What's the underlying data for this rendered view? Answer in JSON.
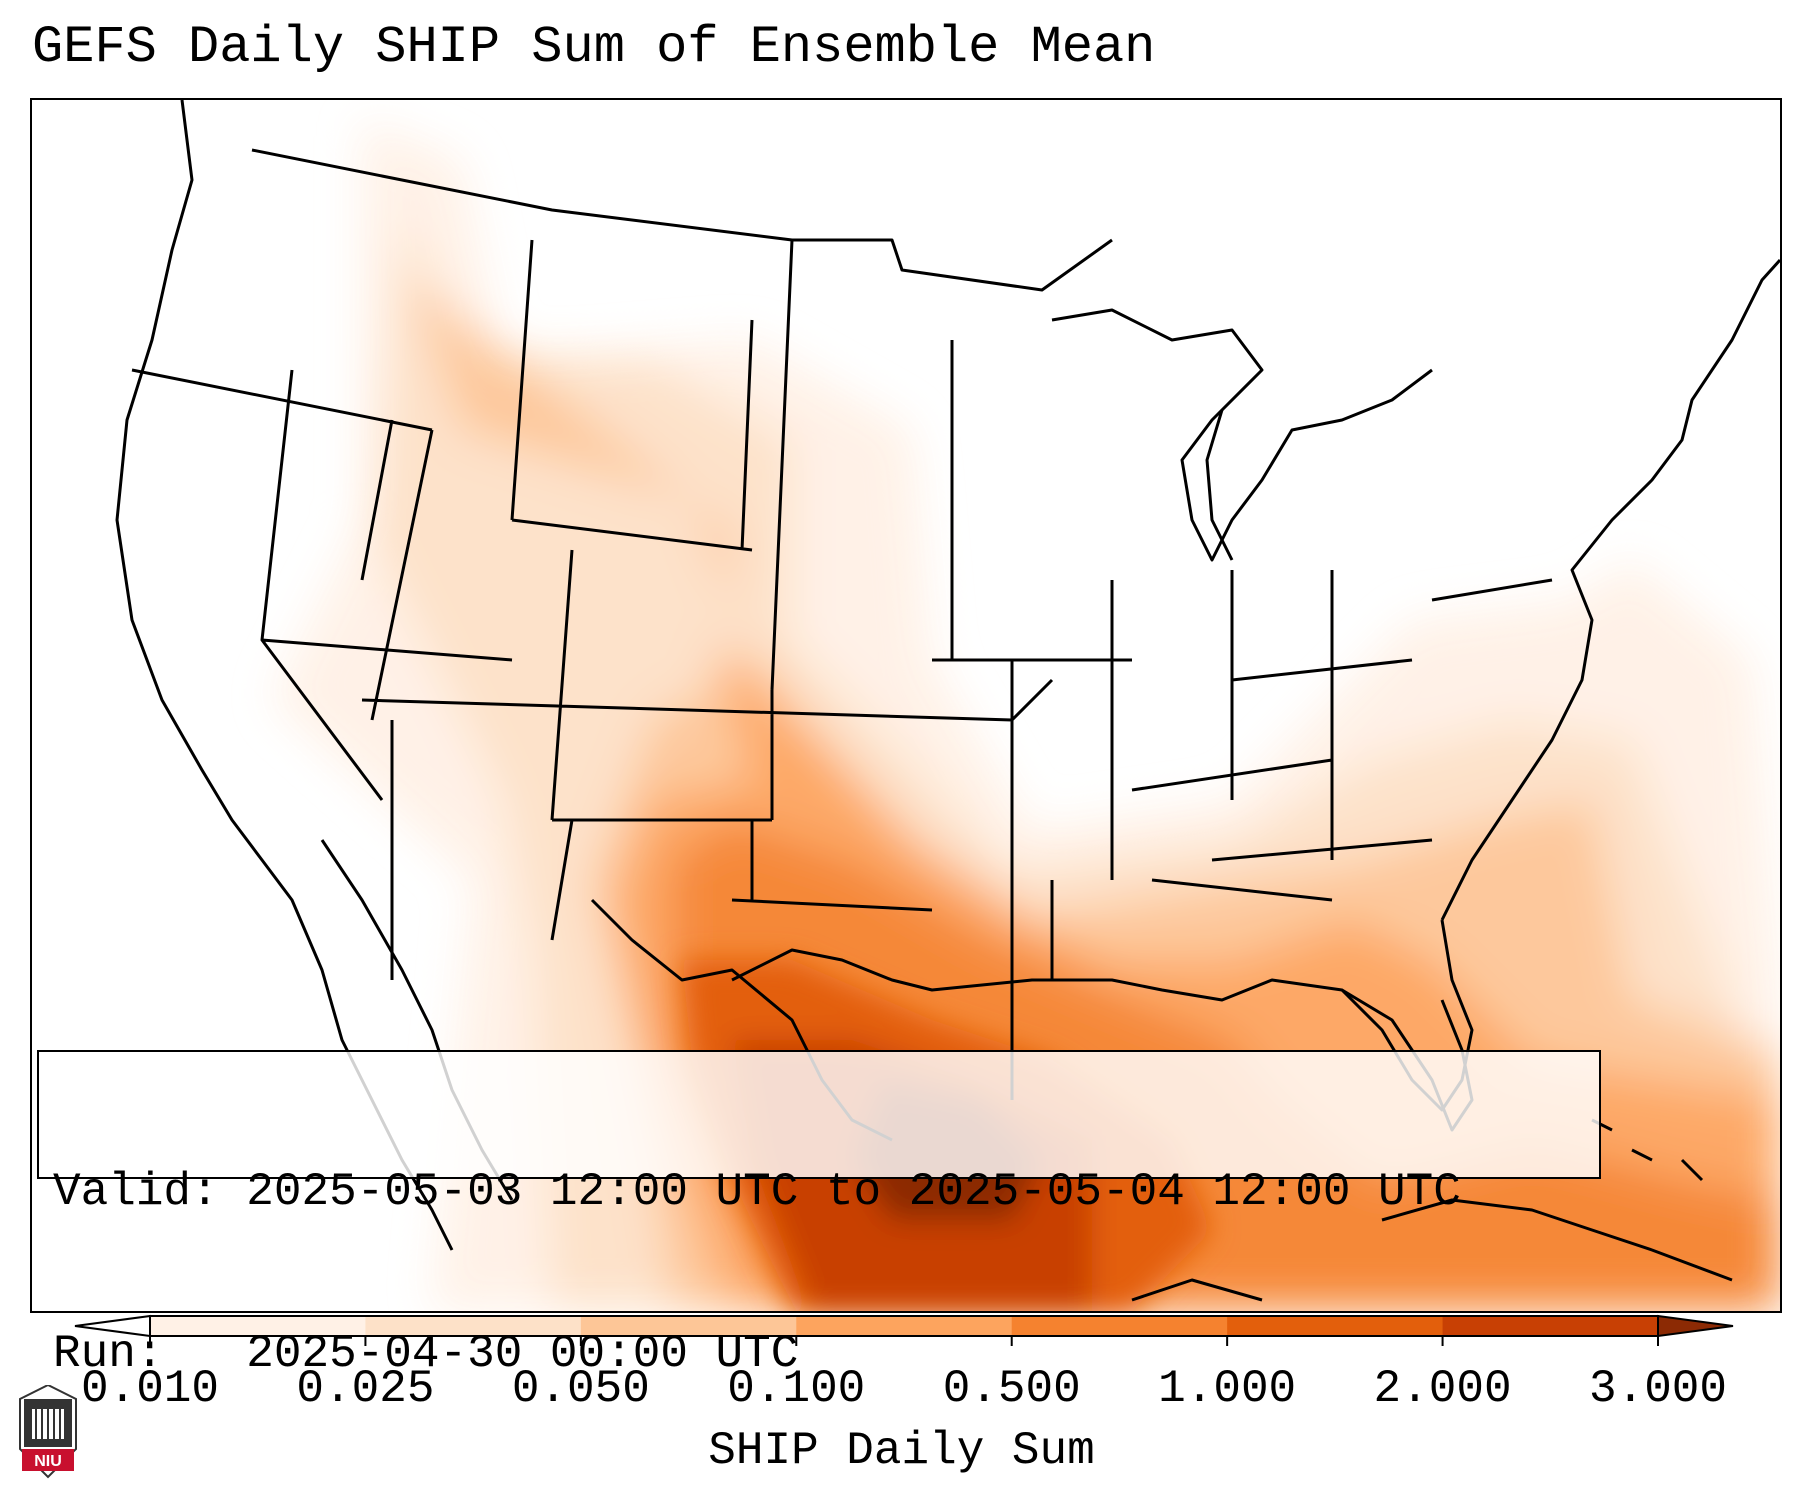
{
  "title": "GEFS Daily SHIP Sum of Ensemble Mean",
  "info": {
    "valid_label": "Valid:",
    "valid_value": "2025-05-03 12:00 UTC to 2025-05-04 12:00 UTC",
    "run_label": "Run:",
    "run_value": "2025-04-30 00:00 UTC"
  },
  "colorbar": {
    "title": "SHIP Daily Sum",
    "ticks": [
      "0.010",
      "0.025",
      "0.050",
      "0.100",
      "0.500",
      "1.000",
      "2.000",
      "3.000"
    ],
    "colors": [
      "#fff1e6",
      "#fde1c8",
      "#fdc697",
      "#fda45e",
      "#f5822f",
      "#e35f0c",
      "#c84004"
    ],
    "under_color": "#ffffff",
    "over_color": "#8c2a04"
  },
  "logo": {
    "text": "NIU",
    "color": "#c8102e"
  }
}
